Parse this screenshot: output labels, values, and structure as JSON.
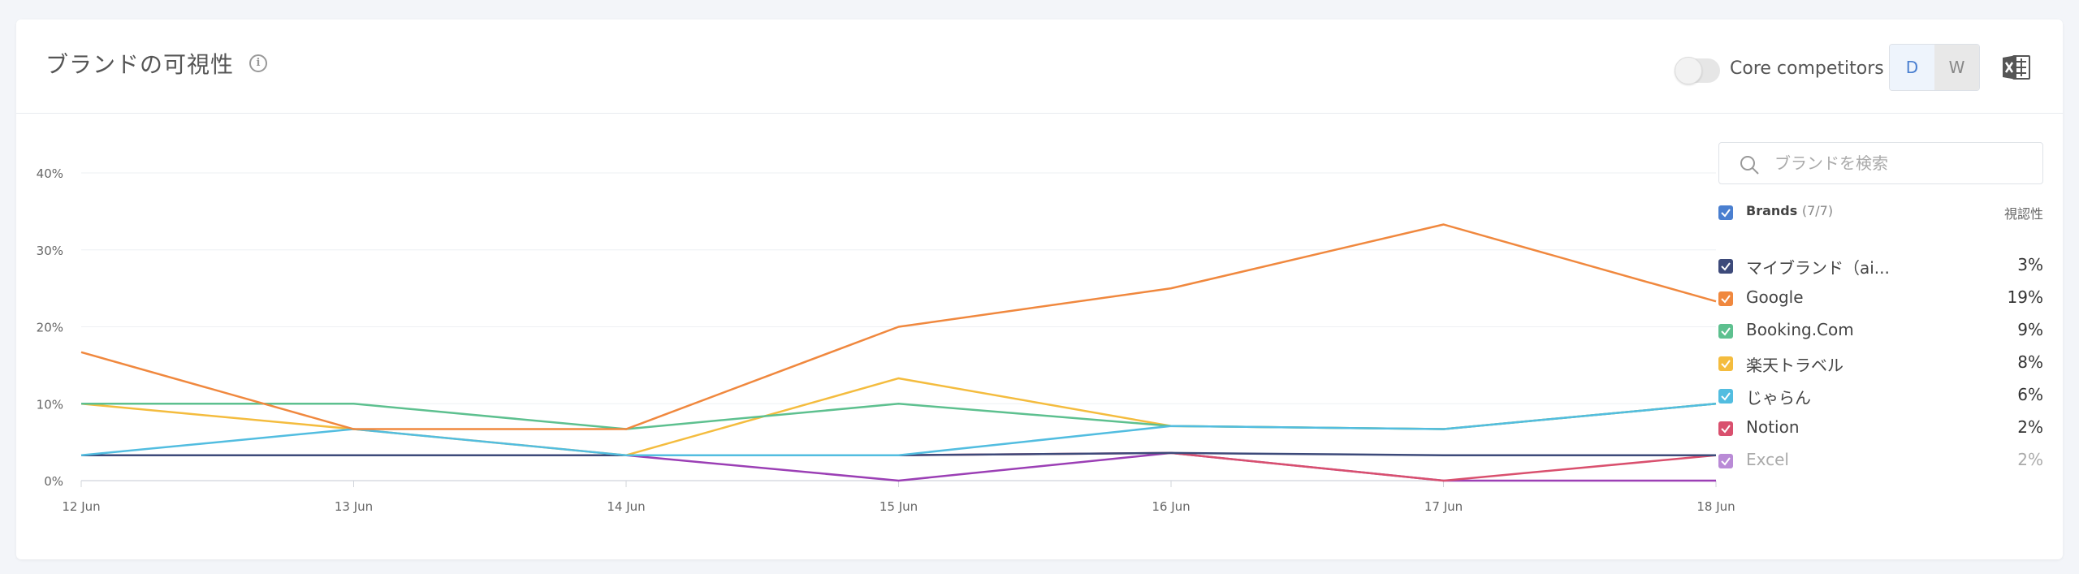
{
  "header": {
    "title": "ブランドの可視性",
    "toggle_label": "Core competitors",
    "period_day": "D",
    "period_week": "W"
  },
  "search": {
    "placeholder": "ブランドを検索"
  },
  "legend": {
    "brands_label": "Brands",
    "brands_count": "(7/7)",
    "visibility_label": "視認性",
    "items": [
      {
        "name": "マイブランド（ai...",
        "pct": "3%",
        "color": "#3d4a7a"
      },
      {
        "name": "Google",
        "pct": "19%",
        "color": "#f0883e"
      },
      {
        "name": "Booking.Com",
        "pct": "9%",
        "color": "#5dc08f"
      },
      {
        "name": "楽天トラベル",
        "pct": "8%",
        "color": "#f4bc3e"
      },
      {
        "name": "じゃらん",
        "pct": "6%",
        "color": "#52bde0"
      },
      {
        "name": "Notion",
        "pct": "2%",
        "color": "#d9506e"
      },
      {
        "name": "Excel",
        "pct": "2%",
        "color": "#b98ad6"
      }
    ]
  },
  "chart_data": {
    "type": "line",
    "x": [
      "12 Jun",
      "13 Jun",
      "14 Jun",
      "15 Jun",
      "16 Jun",
      "17 Jun",
      "18 Jun"
    ],
    "yticks": [
      "0%",
      "10%",
      "20%",
      "30%",
      "40%"
    ],
    "ylim": [
      0,
      40
    ],
    "grid": true,
    "series": [
      {
        "name": "Excel",
        "color": "#9b3fb5",
        "values": [
          3.3,
          3.3,
          3.3,
          0,
          3.6,
          0,
          0
        ]
      },
      {
        "name": "Notion",
        "color": "#d9506e",
        "values": [
          3.3,
          3.3,
          3.3,
          3.3,
          3.6,
          0,
          3.3
        ]
      },
      {
        "name": "マイブランド（ai...",
        "color": "#3d4a7a",
        "values": [
          3.3,
          3.3,
          3.3,
          3.3,
          3.6,
          3.3,
          3.3
        ]
      },
      {
        "name": "楽天トラベル",
        "color": "#f4bc3e",
        "values": [
          10,
          6.7,
          3.3,
          13.3,
          7.1,
          6.7,
          10
        ]
      },
      {
        "name": "Booking.Com",
        "color": "#5dc08f",
        "values": [
          10,
          10,
          6.7,
          10,
          7.1,
          6.7,
          10
        ]
      },
      {
        "name": "じゃらん",
        "color": "#52bde0",
        "values": [
          3.3,
          6.7,
          3.3,
          3.3,
          7.1,
          6.7,
          10
        ]
      },
      {
        "name": "Google",
        "color": "#f0883e",
        "values": [
          16.7,
          6.7,
          6.7,
          20,
          25,
          33.3,
          23.3
        ]
      }
    ]
  }
}
